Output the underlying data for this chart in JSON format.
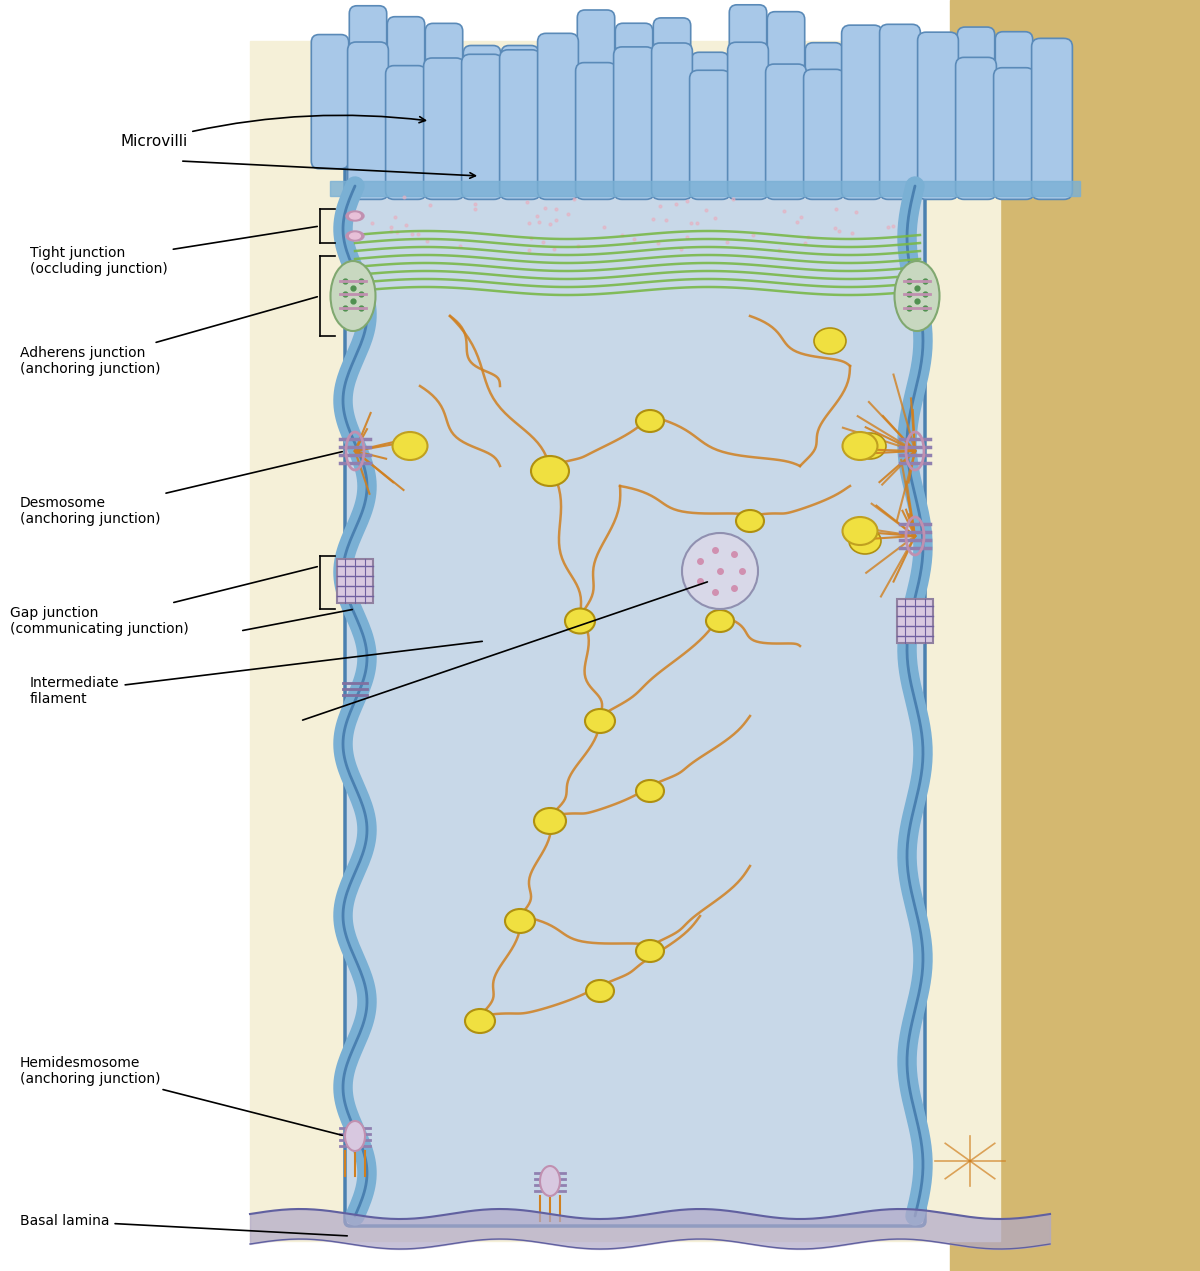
{
  "labels": {
    "microvilli": "Microvilli",
    "tight_junction": "Tight junction\n(occluding junction)",
    "adherens_junction": "Adherens junction\n(anchoring junction)",
    "desmosome": "Desmosome\n(anchoring junction)",
    "intermediate_filament": "Intermediate\nfilament",
    "gap_junction": "Gap junction\n(communicating junction)",
    "hemidesmosome": "Hemidesmosome\n(anchoring junction)",
    "basal_lamina": "Basal lamina"
  },
  "colors": {
    "background": "#ffffff",
    "cell_bg": "#f5f0d8",
    "cell_interior": "#c8d8e8",
    "cell_membrane": "#7ab0d4",
    "cell_membrane_dark": "#4a80b0",
    "microvilli_fill": "#a8c8e8",
    "microvilli_dark": "#5a8ab8",
    "green_fibers": "#7ab84a",
    "orange_filaments": "#d08020",
    "yellow_organelle": "#f0e040",
    "pink_junction": "#d0a0b8",
    "purple_junction": "#9080b0",
    "green_dots": "#60a060",
    "basal_lamina_color": "#b0a8c8",
    "annotation_line": "#000000",
    "right_side_bg": "#d8c898",
    "right_wall": "#d4b870"
  },
  "figsize": [
    12.0,
    12.71
  ],
  "dpi": 100
}
